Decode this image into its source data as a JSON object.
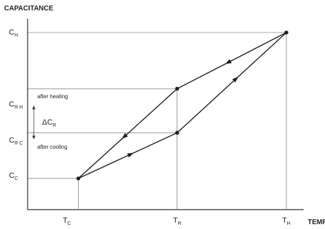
{
  "chart_data": {
    "type": "line",
    "title": "",
    "ylabel": "CAPACITANCE",
    "xlabel": "TEMP",
    "x_ticks": [
      {
        "key": "TC",
        "main": "T",
        "sub": "C"
      },
      {
        "key": "TR",
        "main": "T",
        "sub": "R"
      },
      {
        "key": "TH",
        "main": "T",
        "sub": "H"
      }
    ],
    "y_ticks": [
      {
        "key": "CH",
        "main": "C",
        "sub": "H"
      },
      {
        "key": "CRH",
        "main": "C",
        "sub": "R H"
      },
      {
        "key": "CRC",
        "main": "C",
        "sub": "R C"
      },
      {
        "key": "CC",
        "main": "C",
        "sub": "C"
      }
    ],
    "positions": {
      "x": {
        "TC": 0.196,
        "TR": 0.578,
        "TH": 1.0
      },
      "y": {
        "CC": 0.176,
        "CRC": 0.434,
        "CRH": 0.683,
        "CH": 1.0
      }
    },
    "series": [
      {
        "key": "heating",
        "points": [
          [
            "TC",
            "CC"
          ],
          [
            "TR",
            "CRC"
          ],
          [
            "TH",
            "CH"
          ]
        ]
      },
      {
        "key": "cooling",
        "points": [
          [
            "TH",
            "CH"
          ],
          [
            "TR",
            "CRH"
          ],
          [
            "TC",
            "CC"
          ]
        ]
      }
    ],
    "annotations": {
      "after_heating": "after heating",
      "after_cooling": "after cooling",
      "delta": {
        "main": "ΔC",
        "sub": "R"
      }
    }
  }
}
